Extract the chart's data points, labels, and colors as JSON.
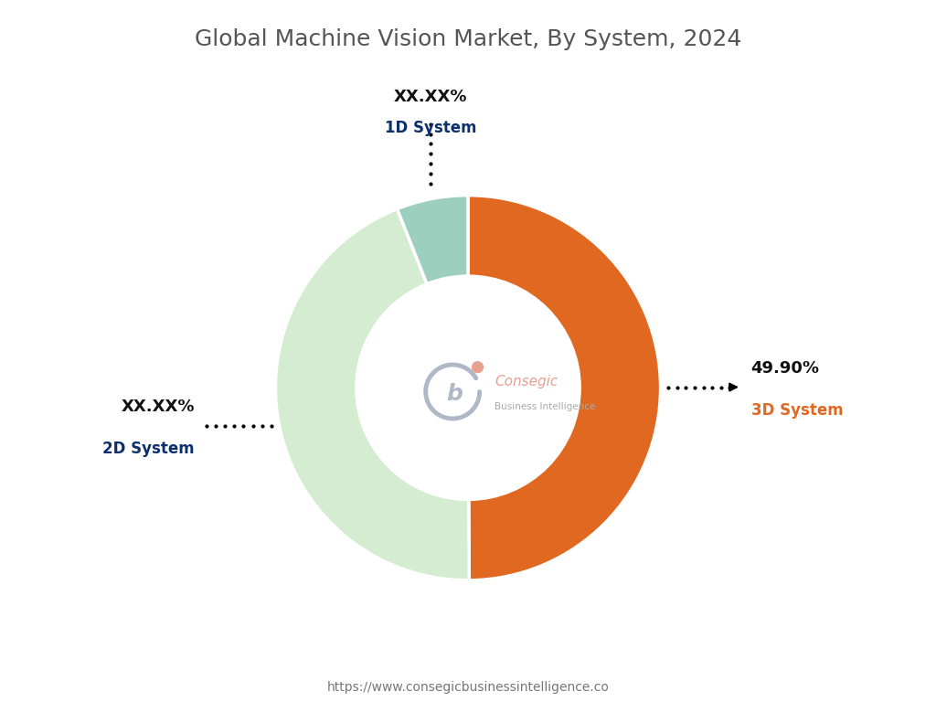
{
  "title": "Global Machine Vision Market, By System, 2024",
  "title_color": "#555555",
  "title_fontsize": 18,
  "segments": [
    {
      "label": "3D System",
      "pct_text": "49.90%",
      "value": 49.9,
      "color": "#E06820",
      "label_color": "#E06820",
      "pct_color": "#111111"
    },
    {
      "label": "2D System",
      "pct_text": "XX.XX%",
      "value": 44.1,
      "color": "#d4ecd0",
      "label_color": "#0d2f6e",
      "pct_color": "#111111"
    },
    {
      "label": "1D System",
      "pct_text": "XX.XX%",
      "value": 6.0,
      "color": "#9dcfbf",
      "label_color": "#0d2f6e",
      "pct_color": "#111111"
    }
  ],
  "donut_width": 0.42,
  "background_color": "#ffffff",
  "footer_text": "https://www.consegicbusinessintelligence.co",
  "footer_color": "#777777",
  "center_label1": "Consegic",
  "center_label2": "Business Intelligence",
  "center_color1": "#E8A090",
  "center_color2": "#aaaaaa",
  "center_logo_color": "#aaaaaa"
}
